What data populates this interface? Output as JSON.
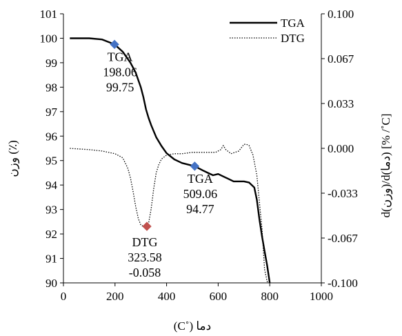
{
  "chart_data": {
    "type": "line",
    "x_axis": {
      "label": "دما (˚C)",
      "range": [
        0,
        1000
      ],
      "ticks": [
        "0",
        "200",
        "400",
        "600",
        "800",
        "1000"
      ]
    },
    "y_axis_left": {
      "label": "وزن (٪)",
      "range": [
        90,
        101
      ],
      "ticks": [
        "90",
        "91",
        "92",
        "93",
        "94",
        "95",
        "96",
        "97",
        "98",
        "99",
        "100",
        "101"
      ]
    },
    "y_axis_right": {
      "label": "d(وزن)/d(دما)   [% /˚C]",
      "range": [
        -0.1,
        0.1
      ],
      "ticks": [
        "-0.100",
        "-0.067",
        "-0.033",
        "0.000",
        "0.033",
        "0.067",
        "0.100"
      ]
    },
    "legend": {
      "placement": "top-right"
    },
    "series": [
      {
        "name": "TGA",
        "axis": "left",
        "style": "solid",
        "color": "#000000",
        "x": [
          25,
          100,
          150,
          198.06,
          230,
          260,
          280,
          300,
          310,
          320,
          330,
          340,
          350,
          360,
          380,
          400,
          430,
          460,
          509.06,
          540,
          560,
          580,
          600,
          620,
          640,
          660,
          680,
          700,
          720,
          740,
          750,
          760,
          770,
          780,
          790,
          800
        ],
        "y": [
          100.0,
          100.0,
          99.95,
          99.75,
          99.45,
          99.0,
          98.6,
          98.0,
          97.6,
          97.1,
          96.75,
          96.45,
          96.2,
          95.95,
          95.6,
          95.3,
          95.05,
          94.9,
          94.77,
          94.6,
          94.5,
          94.4,
          94.45,
          94.35,
          94.25,
          94.15,
          94.15,
          94.15,
          94.1,
          93.9,
          93.4,
          92.6,
          91.9,
          91.3,
          90.7,
          90.0
        ]
      },
      {
        "name": "DTG",
        "axis": "right",
        "style": "dotted",
        "color": "#000000",
        "x": [
          25,
          100,
          150,
          200,
          230,
          250,
          260,
          270,
          280,
          290,
          300,
          310,
          323.58,
          330,
          340,
          350,
          360,
          370,
          380,
          400,
          430,
          460,
          500,
          550,
          590,
          610,
          620,
          630,
          650,
          680,
          700,
          710,
          720,
          735,
          750,
          760,
          770,
          780,
          790,
          800
        ],
        "y": [
          0.0,
          -0.001,
          -0.002,
          -0.004,
          -0.007,
          -0.015,
          -0.022,
          -0.032,
          -0.043,
          -0.052,
          -0.057,
          -0.058,
          -0.058,
          -0.056,
          -0.045,
          -0.03,
          -0.018,
          -0.012,
          -0.008,
          -0.005,
          -0.004,
          -0.004,
          -0.003,
          -0.003,
          -0.003,
          -0.001,
          0.002,
          -0.001,
          -0.004,
          -0.002,
          0.003,
          0.003,
          0.002,
          -0.005,
          -0.02,
          -0.04,
          -0.06,
          -0.09,
          -0.099,
          -0.1
        ]
      }
    ],
    "markers": [
      {
        "series": "TGA",
        "axis": "left",
        "x": 198.06,
        "y": 99.75,
        "color": "#4472c4",
        "label": [
          "TGA",
          "198.06",
          "99.75"
        ]
      },
      {
        "series": "TGA",
        "axis": "left",
        "x": 509.06,
        "y": 94.77,
        "color": "#4472c4",
        "label": [
          "TGA",
          "509.06",
          "94.77"
        ]
      },
      {
        "series": "DTG",
        "axis": "right",
        "x": 323.58,
        "y": -0.058,
        "color": "#c0504d",
        "label": [
          "DTG",
          "323.58",
          "-0.058"
        ]
      }
    ]
  }
}
